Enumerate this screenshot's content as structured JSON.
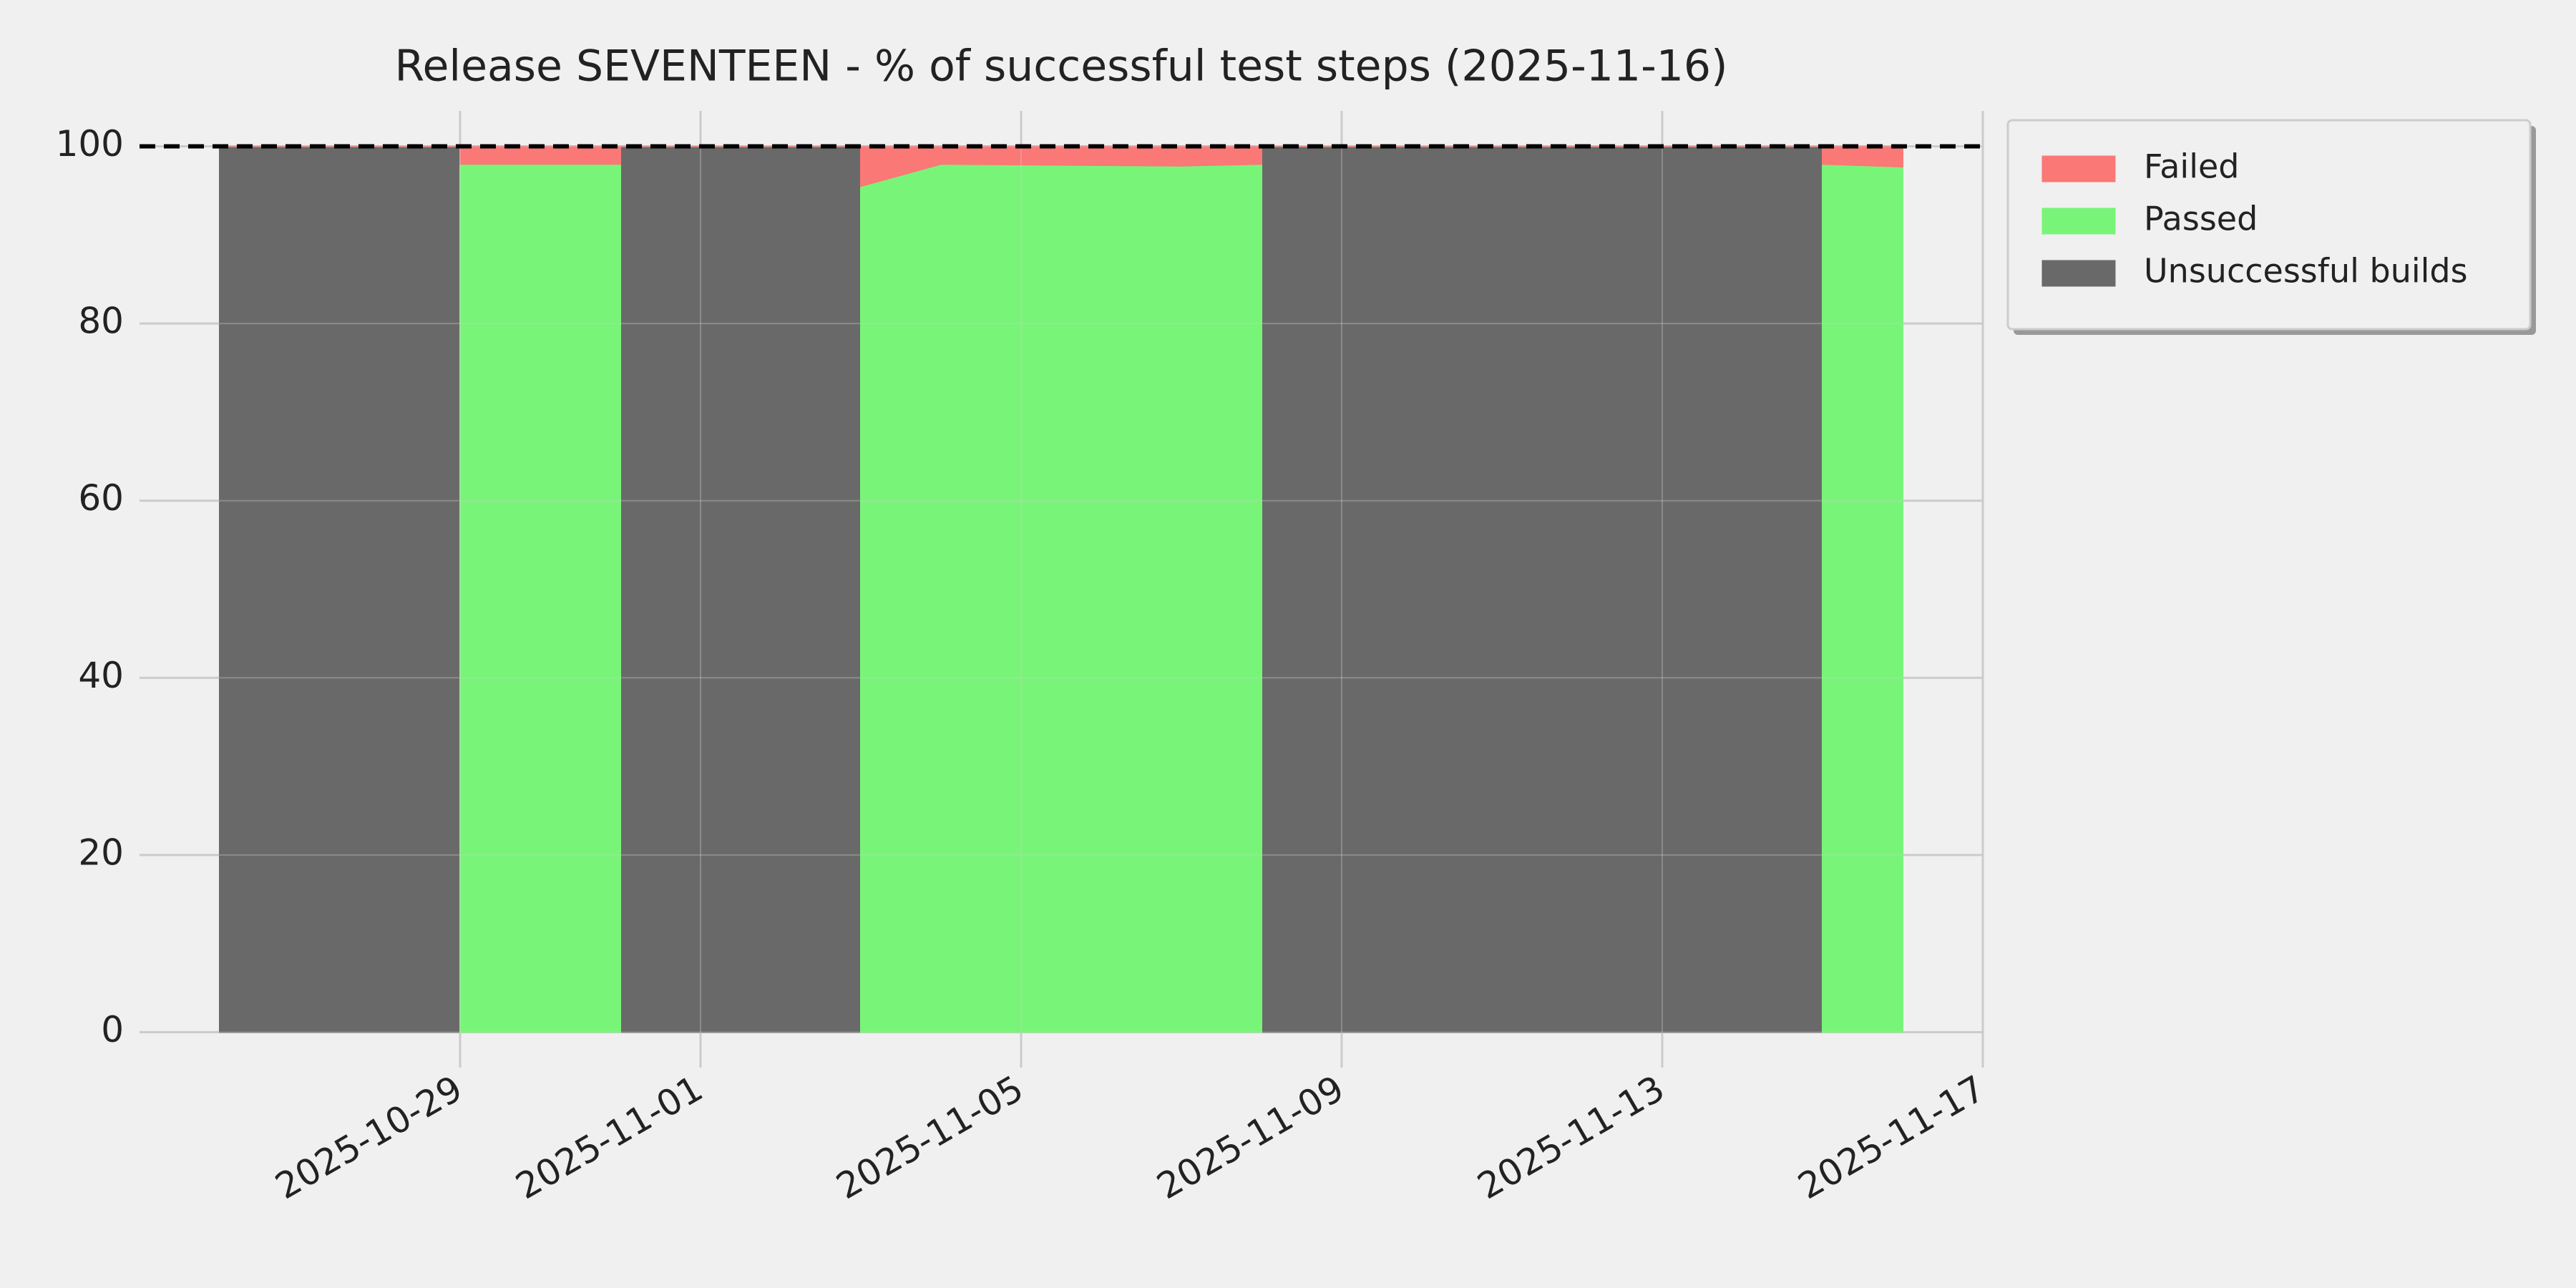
{
  "chart_data": {
    "type": "stacked_area",
    "title": "Release SEVENTEEN - % of successful test steps (2025-11-16)",
    "x": [
      "2025-10-26",
      "2025-10-29",
      "2025-10-29",
      "2025-10-31",
      "2025-10-31",
      "2025-11-03",
      "2025-11-03",
      "2025-11-04",
      "2025-11-07",
      "2025-11-08",
      "2025-11-08",
      "2025-11-15",
      "2025-11-15",
      "2025-11-16"
    ],
    "series": [
      {
        "name": "Unsuccessful builds",
        "color": "#696969",
        "values": [
          100,
          100,
          0,
          0,
          100,
          100,
          0,
          0,
          0,
          0,
          100,
          100,
          0,
          0
        ]
      },
      {
        "name": "Passed",
        "color": "#78f578",
        "values": [
          0,
          0,
          98,
          98,
          0,
          0,
          95.5,
          98,
          97.8,
          98,
          0,
          0,
          98,
          97.7
        ]
      },
      {
        "name": "Failed",
        "color": "#fa7876",
        "values": [
          0,
          0,
          2,
          2,
          0,
          0,
          4.5,
          2,
          2.2,
          2,
          0,
          0,
          2,
          2.3
        ]
      }
    ],
    "xlim": [
      "2025-10-25",
      "2025-11-17"
    ],
    "xticks": [
      "2025-10-29",
      "2025-11-01",
      "2025-11-05",
      "2025-11-09",
      "2025-11-13",
      "2025-11-17"
    ],
    "ylim": [
      -4,
      104
    ],
    "yticks": [
      0,
      20,
      40,
      60,
      80,
      100
    ],
    "hline": 100,
    "grid": true,
    "legend": "outside-right"
  }
}
